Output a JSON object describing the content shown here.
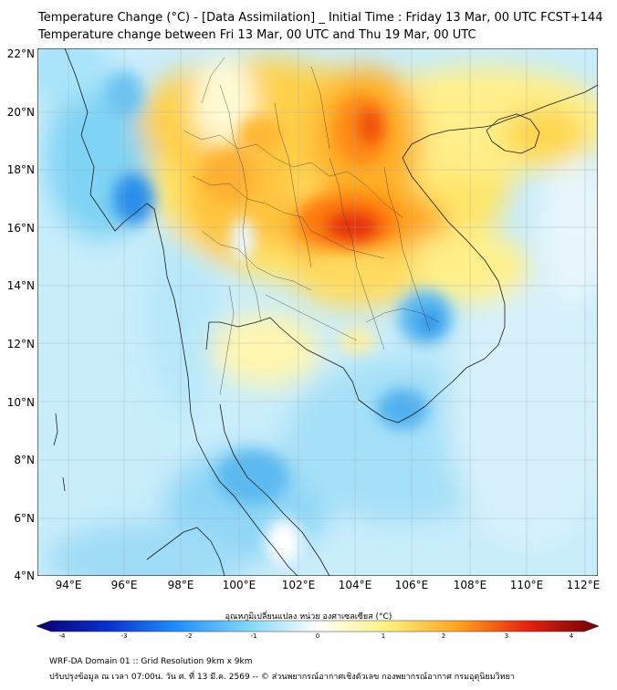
{
  "title": {
    "line1": "Temperature Change (°C) - [Data Assimilation] _ Initial Time : Friday 13 Mar, 00 UTC FCST+144",
    "line2": "Temperature change between Fri 13 Mar, 00 UTC and Thu 19 Mar, 00 UTC"
  },
  "axes": {
    "lat_labels": [
      "22°N",
      "20°N",
      "18°N",
      "16°N",
      "14°N",
      "12°N",
      "10°N",
      "8°N",
      "6°N",
      "4°N"
    ],
    "lon_labels": [
      "94°E",
      "96°E",
      "98°E",
      "100°E",
      "102°E",
      "104°E",
      "106°E",
      "108°E",
      "110°E",
      "112°E"
    ]
  },
  "colorbar": {
    "label": "อุณหภูมิเปลี่ยนแปลง หน่วย องศาเซลเซียส (°C)",
    "ticks": [
      "-4",
      "-3",
      "-2",
      "-1",
      "0",
      "1",
      "2",
      "3",
      "4"
    ],
    "min": -4,
    "max": 4,
    "colors": [
      "#08006e",
      "#0a2fd0",
      "#1e90ff",
      "#7fd6f7",
      "#ffffff",
      "#fff27a",
      "#ffa41c",
      "#e8200e",
      "#6e0008"
    ]
  },
  "footer": {
    "line1": "WRF-DA Domain 01 :: Grid Resolution 9km x 9km",
    "line2": "ปรับปรุงข้อมูล ณ เวลา 07:00น. วัน ศ. ที่ 13 มี.ค. 2569 -- © ส่วนพยากรณ์อากาศเชิงตัวเลข กองพยากรณ์อากาศ กรมอุตุนิยมวิทยา"
  }
}
